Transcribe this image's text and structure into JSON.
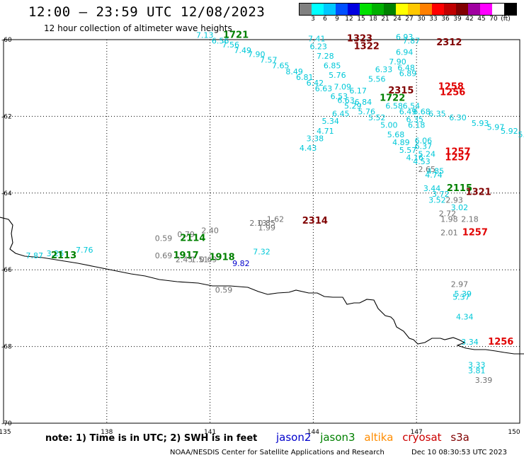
{
  "header": {
    "title": "12:00 – 23:59 UTC 12/08/2023",
    "subtitle": "12 hour collection of altimeter wave heights"
  },
  "legend": {
    "colors": [
      "#808080",
      "#00ffff",
      "#00c8ff",
      "#0050ff",
      "#0000e0",
      "#00e000",
      "#00b000",
      "#008000",
      "#ffff00",
      "#ffc800",
      "#ff8000",
      "#ff0000",
      "#c00000",
      "#800000",
      "#a000a0",
      "#ff00ff",
      "#ffffff",
      "#000000"
    ],
    "ticks": [
      "3",
      "6",
      "9",
      "12",
      "15",
      "18",
      "21",
      "24",
      "27",
      "30",
      "33",
      "36",
      "39",
      "42",
      "45",
      "70",
      "(ft)"
    ]
  },
  "axes": {
    "x_ticks": [
      "135",
      "138",
      "141",
      "144",
      "147",
      "150"
    ],
    "y_ticks": [
      "-60",
      "-62",
      "-64",
      "-66",
      "-68",
      "-70"
    ]
  },
  "colors": {
    "cyan": "#00c8d8",
    "gray": "#707070",
    "blue": "#0000cc",
    "green": "#008000",
    "darkred": "#800000",
    "red": "#e00000"
  },
  "observations": [
    {
      "text": "7.13",
      "color": "cyan",
      "lon": 140.85,
      "lat": -59.95
    },
    {
      "text": "1721",
      "color": "green",
      "lon": 141.75,
      "lat": -59.95,
      "bold": true
    },
    {
      "text": "6.56",
      "color": "cyan",
      "lon": 141.3,
      "lat": -60.1
    },
    {
      "text": "7.56",
      "color": "cyan",
      "lon": 141.6,
      "lat": -60.2
    },
    {
      "text": "7.49",
      "color": "cyan",
      "lon": 141.95,
      "lat": -60.35
    },
    {
      "text": "7.90",
      "color": "cyan",
      "lon": 142.35,
      "lat": -60.45
    },
    {
      "text": "7.57",
      "color": "cyan",
      "lon": 142.7,
      "lat": -60.6
    },
    {
      "text": "7.65",
      "color": "cyan",
      "lon": 143.05,
      "lat": -60.75
    },
    {
      "text": "8.49",
      "color": "cyan",
      "lon": 143.45,
      "lat": -60.9
    },
    {
      "text": "6.81",
      "color": "cyan",
      "lon": 143.75,
      "lat": -61.05
    },
    {
      "text": "6.42",
      "color": "cyan",
      "lon": 144.05,
      "lat": -61.2
    },
    {
      "text": "6.63",
      "color": "cyan",
      "lon": 144.3,
      "lat": -61.35
    },
    {
      "text": "7.41",
      "color": "cyan",
      "lon": 144.1,
      "lat": -60.05
    },
    {
      "text": "6.23",
      "color": "cyan",
      "lon": 144.15,
      "lat": -60.25
    },
    {
      "text": "7.28",
      "color": "cyan",
      "lon": 144.35,
      "lat": -60.5
    },
    {
      "text": "6.85",
      "color": "cyan",
      "lon": 144.55,
      "lat": -60.75
    },
    {
      "text": "5.76",
      "color": "cyan",
      "lon": 144.7,
      "lat": -61.0
    },
    {
      "text": "7.09",
      "color": "cyan",
      "lon": 144.85,
      "lat": -61.3
    },
    {
      "text": "6.53",
      "color": "cyan",
      "lon": 144.75,
      "lat": -61.55
    },
    {
      "text": "6.63",
      "color": "cyan",
      "lon": 144.95,
      "lat": -61.65
    },
    {
      "text": "6.17",
      "color": "cyan",
      "lon": 145.3,
      "lat": -61.4
    },
    {
      "text": "6.84",
      "color": "cyan",
      "lon": 145.45,
      "lat": -61.7
    },
    {
      "text": "5.29",
      "color": "cyan",
      "lon": 145.15,
      "lat": -61.8
    },
    {
      "text": "5.76",
      "color": "cyan",
      "lon": 145.55,
      "lat": -61.95
    },
    {
      "text": "6.45",
      "color": "cyan",
      "lon": 144.8,
      "lat": -62.0
    },
    {
      "text": "5.34",
      "color": "cyan",
      "lon": 144.5,
      "lat": -62.2
    },
    {
      "text": "4.71",
      "color": "cyan",
      "lon": 144.35,
      "lat": -62.45
    },
    {
      "text": "3.38",
      "color": "cyan",
      "lon": 144.05,
      "lat": -62.65
    },
    {
      "text": "4.43",
      "color": "cyan",
      "lon": 143.85,
      "lat": -62.9
    },
    {
      "text": "5.52",
      "color": "cyan",
      "lon": 145.85,
      "lat": -62.1
    },
    {
      "text": "5.00",
      "color": "cyan",
      "lon": 146.2,
      "lat": -62.3
    },
    {
      "text": "5.68",
      "color": "cyan",
      "lon": 146.4,
      "lat": -62.55
    },
    {
      "text": "4.89",
      "color": "cyan",
      "lon": 146.55,
      "lat": -62.75
    },
    {
      "text": "5.57",
      "color": "cyan",
      "lon": 146.75,
      "lat": -62.95
    },
    {
      "text": "4.16",
      "color": "cyan",
      "lon": 146.95,
      "lat": -63.15
    },
    {
      "text": "1323",
      "color": "darkred",
      "lon": 145.35,
      "lat": -60.05,
      "bold": true
    },
    {
      "text": "1322",
      "color": "darkred",
      "lon": 145.55,
      "lat": -60.25,
      "bold": true
    },
    {
      "text": "6.93",
      "color": "cyan",
      "lon": 146.65,
      "lat": -60.0
    },
    {
      "text": "7.87",
      "color": "cyan",
      "lon": 146.85,
      "lat": -60.1
    },
    {
      "text": "2312",
      "color": "darkred",
      "lon": 147.95,
      "lat": -60.15,
      "bold": true
    },
    {
      "text": "6.94",
      "color": "cyan",
      "lon": 146.65,
      "lat": -60.4
    },
    {
      "text": "7.90",
      "color": "cyan",
      "lon": 146.45,
      "lat": -60.65
    },
    {
      "text": "6.33",
      "color": "cyan",
      "lon": 146.05,
      "lat": -60.85
    },
    {
      "text": "6.48",
      "color": "cyan",
      "lon": 146.7,
      "lat": -60.8
    },
    {
      "text": "6.89",
      "color": "cyan",
      "lon": 146.75,
      "lat": -60.95
    },
    {
      "text": "5.56",
      "color": "cyan",
      "lon": 145.85,
      "lat": -61.1
    },
    {
      "text": "2315",
      "color": "darkred",
      "lon": 146.55,
      "lat": -61.4,
      "bold": true
    },
    {
      "text": "1722",
      "color": "green",
      "lon": 146.3,
      "lat": -61.6,
      "bold": true
    },
    {
      "text": "6.58",
      "color": "cyan",
      "lon": 146.35,
      "lat": -61.8
    },
    {
      "text": "6.54",
      "color": "cyan",
      "lon": 146.85,
      "lat": -61.8
    },
    {
      "text": "6.68",
      "color": "cyan",
      "lon": 147.15,
      "lat": -61.95
    },
    {
      "text": "6.49",
      "color": "cyan",
      "lon": 146.75,
      "lat": -61.95
    },
    {
      "text": "6.35",
      "color": "cyan",
      "lon": 147.6,
      "lat": -62.0
    },
    {
      "text": "6.35",
      "color": "cyan",
      "lon": 146.95,
      "lat": -62.15
    },
    {
      "text": "6.30",
      "color": "cyan",
      "lon": 148.2,
      "lat": -62.1
    },
    {
      "text": "6.18",
      "color": "cyan",
      "lon": 147.0,
      "lat": -62.3
    },
    {
      "text": "5.93",
      "color": "cyan",
      "lon": 148.85,
      "lat": -62.25
    },
    {
      "text": "5.97",
      "color": "cyan",
      "lon": 149.3,
      "lat": -62.35
    },
    {
      "text": "5.92",
      "color": "cyan",
      "lon": 149.7,
      "lat": -62.45
    },
    {
      "text": "5.65",
      "color": "cyan",
      "lon": 150.2,
      "lat": -62.55
    },
    {
      "text": "5.6",
      "color": "cyan",
      "lon": 150.45,
      "lat": -62.65
    },
    {
      "text": "1258",
      "color": "red",
      "lon": 148.0,
      "lat": -61.3,
      "bold": true
    },
    {
      "text": "1256",
      "color": "red",
      "lon": 148.05,
      "lat": -61.45,
      "bold": true
    },
    {
      "text": "6.06",
      "color": "cyan",
      "lon": 147.2,
      "lat": -62.7
    },
    {
      "text": "6.37",
      "color": "cyan",
      "lon": 147.2,
      "lat": -62.85
    },
    {
      "text": "5.24",
      "color": "cyan",
      "lon": 147.3,
      "lat": -63.05
    },
    {
      "text": "4.53",
      "color": "cyan",
      "lon": 147.15,
      "lat": -63.25
    },
    {
      "text": "1257",
      "color": "red",
      "lon": 148.2,
      "lat": -63.0,
      "bold": true
    },
    {
      "text": "1257",
      "color": "red",
      "lon": 148.2,
      "lat": -63.15,
      "bold": true
    },
    {
      "text": "2.65",
      "color": "gray",
      "lon": 147.3,
      "lat": -63.45
    },
    {
      "text": "4.85",
      "color": "cyan",
      "lon": 147.55,
      "lat": -63.5
    },
    {
      "text": "4.74",
      "color": "cyan",
      "lon": 147.5,
      "lat": -63.6
    },
    {
      "text": "3.44",
      "color": "cyan",
      "lon": 147.45,
      "lat": -63.95
    },
    {
      "text": "2115",
      "color": "green",
      "lon": 148.25,
      "lat": -63.95,
      "bold": true
    },
    {
      "text": "1321",
      "color": "darkred",
      "lon": 148.8,
      "lat": -64.05,
      "bold": true
    },
    {
      "text": "3.72",
      "color": "cyan",
      "lon": 147.7,
      "lat": -64.1
    },
    {
      "text": "3.52",
      "color": "cyan",
      "lon": 147.6,
      "lat": -64.25
    },
    {
      "text": "2.93",
      "color": "gray",
      "lon": 148.1,
      "lat": -64.25
    },
    {
      "text": "3.02",
      "color": "cyan",
      "lon": 148.25,
      "lat": -64.45
    },
    {
      "text": "2.72",
      "color": "gray",
      "lon": 147.9,
      "lat": -64.6
    },
    {
      "text": "1.98",
      "color": "gray",
      "lon": 147.95,
      "lat": -64.75
    },
    {
      "text": "2.18",
      "color": "gray",
      "lon": 148.55,
      "lat": -64.75
    },
    {
      "text": "2.01",
      "color": "gray",
      "lon": 147.95,
      "lat": -65.1
    },
    {
      "text": "1257",
      "color": "red",
      "lon": 148.7,
      "lat": -65.1,
      "bold": true
    },
    {
      "text": "2.13",
      "color": "gray",
      "lon": 142.4,
      "lat": -64.85
    },
    {
      "text": "1.62",
      "color": "gray",
      "lon": 142.9,
      "lat": -64.75
    },
    {
      "text": "0.85",
      "color": "gray",
      "lon": 142.65,
      "lat": -64.85
    },
    {
      "text": "1.99",
      "color": "gray",
      "lon": 142.65,
      "lat": -64.97
    },
    {
      "text": "2314",
      "color": "darkred",
      "lon": 144.05,
      "lat": -64.8,
      "bold": true
    },
    {
      "text": "0.59",
      "color": "gray",
      "lon": 139.65,
      "lat": -65.25
    },
    {
      "text": "0.79",
      "color": "gray",
      "lon": 140.3,
      "lat": -65.15
    },
    {
      "text": "2.40",
      "color": "gray",
      "lon": 141.0,
      "lat": -65.05
    },
    {
      "text": "2114",
      "color": "green",
      "lon": 140.5,
      "lat": -65.25,
      "bold": true
    },
    {
      "text": "0.69",
      "color": "gray",
      "lon": 139.65,
      "lat": -65.7
    },
    {
      "text": "1917",
      "color": "green",
      "lon": 140.3,
      "lat": -65.7,
      "bold": true
    },
    {
      "text": "2.45",
      "color": "gray",
      "lon": 140.25,
      "lat": -65.8
    },
    {
      "text": "1.51",
      "color": "gray",
      "lon": 140.7,
      "lat": -65.8
    },
    {
      "text": "0.69",
      "color": "gray",
      "lon": 140.95,
      "lat": -65.8
    },
    {
      "text": "1918",
      "color": "green",
      "lon": 141.35,
      "lat": -65.75,
      "bold": true
    },
    {
      "text": "9.82",
      "color": "blue",
      "lon": 141.9,
      "lat": -65.9
    },
    {
      "text": "7.32",
      "color": "cyan",
      "lon": 142.5,
      "lat": -65.6
    },
    {
      "text": "7.87",
      "color": "cyan",
      "lon": 135.9,
      "lat": -65.7
    },
    {
      "text": "3.26",
      "color": "cyan",
      "lon": 136.5,
      "lat": -65.65
    },
    {
      "text": "2113",
      "color": "green",
      "lon": 136.75,
      "lat": -65.7,
      "bold": true
    },
    {
      "text": "7.76",
      "color": "cyan",
      "lon": 137.35,
      "lat": -65.55
    },
    {
      "text": "0.59",
      "color": "gray",
      "lon": 141.4,
      "lat": -66.6
    },
    {
      "text": "2.97",
      "color": "gray",
      "lon": 148.25,
      "lat": -66.45
    },
    {
      "text": "5.39",
      "color": "cyan",
      "lon": 148.35,
      "lat": -66.7
    },
    {
      "text": "5.37",
      "color": "cyan",
      "lon": 148.3,
      "lat": -66.78
    },
    {
      "text": "4.34",
      "color": "cyan",
      "lon": 148.4,
      "lat": -67.3
    },
    {
      "text": "3.34",
      "color": "cyan",
      "lon": 148.55,
      "lat": -67.95
    },
    {
      "text": "1256",
      "color": "red",
      "lon": 149.45,
      "lat": -67.95,
      "bold": true
    },
    {
      "text": "3.33",
      "color": "cyan",
      "lon": 148.75,
      "lat": -68.55
    },
    {
      "text": "3.81",
      "color": "cyan",
      "lon": 148.75,
      "lat": -68.7
    },
    {
      "text": "3.39",
      "color": "gray",
      "lon": 148.95,
      "lat": -68.95
    }
  ],
  "footer": {
    "note": "note:  1) Time is in UTC;  2) SWH is in feet",
    "satellites": [
      {
        "name": "jason2",
        "color": "#0000cc"
      },
      {
        "name": "jason3",
        "color": "#008000"
      },
      {
        "name": "altika",
        "color": "#ff8c00"
      },
      {
        "name": "cryosat",
        "color": "#cc0000"
      },
      {
        "name": "s3a",
        "color": "#800000"
      }
    ],
    "credit": "NOAA/NESDIS Center for Satellite Applications and Research",
    "timestamp": "Dec 10 08:30:53 UTC 2023"
  }
}
